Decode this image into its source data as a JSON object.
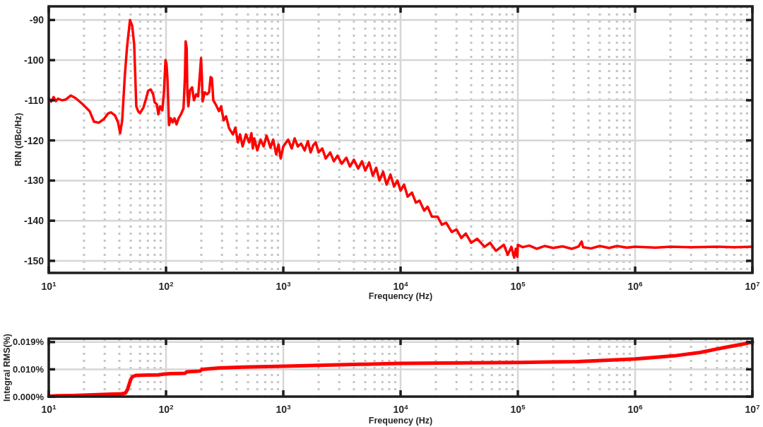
{
  "chart_data": [
    {
      "type": "line",
      "xlabel": "Frequency (Hz)",
      "ylabel": "RIN (dBc/Hz)",
      "log": "x",
      "grid": true,
      "color": "#ff0000",
      "xlim": [
        10,
        10000000
      ],
      "xticks": [
        {
          "value": 10,
          "label": "10$^{1}$"
        },
        {
          "value": 100,
          "label": "10$^{2}$"
        },
        {
          "value": 1000,
          "label": "10$^{3}$"
        },
        {
          "value": 10000,
          "label": "10$^{4}$"
        },
        {
          "value": 100000,
          "label": "10$^{5}$"
        },
        {
          "value": 1000000,
          "label": "10$^{6}$"
        },
        {
          "value": 10000000,
          "label": "10$^{7}$"
        }
      ],
      "ylim": [
        -153,
        -86.6
      ],
      "yticks": [
        -150,
        -140,
        -130,
        -120,
        -110,
        -100,
        -90
      ],
      "x": [
        10,
        10.5,
        11,
        11.5,
        12,
        13,
        14,
        15.4,
        17,
        19.5,
        22.3,
        24.3,
        26.7,
        29.5,
        32,
        33.9,
        36.8,
        39,
        40.6,
        42.3,
        44.5,
        46.5,
        49.3,
        51.5,
        53.5,
        55.8,
        58,
        60,
        64.2,
        67,
        70.5,
        74,
        77.7,
        80,
        83.5,
        86,
        89,
        93,
        96,
        99,
        101,
        103,
        106,
        110,
        114,
        118,
        123,
        128,
        134,
        141,
        145,
        147,
        150,
        152,
        155,
        160,
        167,
        173,
        181,
        188,
        195,
        199,
        202,
        205,
        214,
        224,
        233,
        240,
        246,
        253,
        265,
        283,
        295,
        310,
        325,
        345,
        372,
        390,
        410,
        428,
        450,
        480,
        513,
        535,
        550,
        566,
        600,
        640,
        680,
        720,
        778,
        820,
        870,
        910,
        950,
        1000,
        1100,
        1180,
        1250,
        1330,
        1420,
        1520,
        1620,
        1710,
        1800,
        1890,
        2000,
        2150,
        2300,
        2510,
        2700,
        2900,
        3150,
        3450,
        3700,
        4000,
        4350,
        4690,
        5000,
        5400,
        5800,
        6200,
        6600,
        7100,
        7600,
        8200,
        8800,
        9400,
        10000,
        10700,
        11500,
        12500,
        13500,
        14500,
        15900,
        17000,
        18500,
        20700,
        22500,
        24500,
        27300,
        30000,
        33000,
        36000,
        40000,
        45000,
        52000,
        58000,
        65000,
        76000,
        82000,
        88000,
        93000,
        96000,
        99000,
        100000,
        110000,
        125000,
        145000,
        170000,
        200000,
        240000,
        290000,
        330000,
        350000,
        360000,
        420000,
        500000,
        600000,
        700000,
        850000,
        1000000,
        1500000,
        2000000,
        3000000,
        5000000,
        7000000,
        10000000
      ],
      "values": [
        -109.5,
        -110.3,
        -109.2,
        -110.2,
        -109.6,
        -110,
        -109.8,
        -108.8,
        -109.5,
        -111,
        -112.7,
        -115.3,
        -115.6,
        -114.7,
        -113.3,
        -113,
        -113.8,
        -115.5,
        -118.2,
        -115,
        -104,
        -96.8,
        -90,
        -91.5,
        -96,
        -111.5,
        -112.8,
        -113.2,
        -111.8,
        -110,
        -107.6,
        -107.3,
        -108.5,
        -110.5,
        -111,
        -113.5,
        -111.5,
        -112.5,
        -108,
        -100,
        -101,
        -105,
        -116.2,
        -114.5,
        -115.5,
        -114.5,
        -116,
        -114.5,
        -113.5,
        -112,
        -104,
        -95.3,
        -97,
        -108,
        -111.5,
        -107.5,
        -106.8,
        -110,
        -108.5,
        -109,
        -103,
        -99.5,
        -104,
        -110.3,
        -108,
        -108.5,
        -108,
        -104.2,
        -104.5,
        -110,
        -111,
        -112.7,
        -111.5,
        -115,
        -114,
        -117,
        -118.5,
        -116.8,
        -120.5,
        -118.5,
        -121.5,
        -118.5,
        -120.5,
        -118.2,
        -122,
        -119.5,
        -122.5,
        -119.8,
        -121.5,
        -118.8,
        -121.8,
        -119.8,
        -123.5,
        -121,
        -124.5,
        -121.5,
        -119.8,
        -122,
        -119.5,
        -121.5,
        -120.8,
        -122.5,
        -120.2,
        -123,
        -121.2,
        -120.5,
        -123,
        -122,
        -124.5,
        -123,
        -125.2,
        -123.8,
        -125.8,
        -124.3,
        -126.5,
        -124.8,
        -127,
        -125.2,
        -127.5,
        -125.5,
        -128.8,
        -126.8,
        -130,
        -127.8,
        -131,
        -128.5,
        -131.5,
        -130,
        -132.5,
        -131,
        -134,
        -133,
        -135.5,
        -135,
        -137.5,
        -136.5,
        -139,
        -139,
        -141,
        -140.5,
        -142.8,
        -142.2,
        -144.3,
        -143.2,
        -145.5,
        -144.5,
        -146.5,
        -145.5,
        -147.5,
        -146,
        -148.5,
        -146.5,
        -149.2,
        -147,
        -149,
        -146,
        -146.6,
        -146.2,
        -147,
        -146.3,
        -146.8,
        -146.4,
        -147,
        -146.4,
        -145.2,
        -146.6,
        -146.9,
        -146.3,
        -146.8,
        -146.3,
        -146.7,
        -146.5,
        -146.7,
        -146.5,
        -146.6,
        -146.5,
        -146.6,
        -146.5
      ]
    },
    {
      "type": "line",
      "xlabel": "Frequency (Hz)",
      "ylabel": "Integral RMS(%)",
      "log": "x",
      "grid": true,
      "color": "#ff0000",
      "xlim": [
        10,
        10000000
      ],
      "xticks": [
        {
          "value": 10,
          "label": "10$^{1}$"
        },
        {
          "value": 100,
          "label": "10$^{2}$"
        },
        {
          "value": 1000,
          "label": "10$^{3}$"
        },
        {
          "value": 10000,
          "label": "10$^{4}$"
        },
        {
          "value": 100000,
          "label": "10$^{5}$"
        },
        {
          "value": 1000000,
          "label": "10$^{6}$"
        },
        {
          "value": 10000000,
          "label": "10$^{7}$"
        }
      ],
      "ylim": [
        0,
        0.0202
      ],
      "yticks": [
        {
          "value": 0,
          "label": "0.000%"
        },
        {
          "value": 0.0095,
          "label": "0.010%"
        },
        {
          "value": 0.019,
          "label": "0.019%"
        }
      ],
      "x": [
        10,
        12,
        16,
        26,
        41.7,
        45,
        47,
        48.5,
        50,
        52,
        55.8,
        70,
        86,
        95,
        100,
        109,
        145,
        150,
        177,
        195,
        203,
        283,
        456,
        1020,
        4960,
        10000,
        100000,
        320000,
        1000000,
        2150000,
        3600000,
        5600000,
        8300000,
        10000000
      ],
      "values": [
        0.0001,
        0.0003,
        0.0004,
        0.0007,
        0.001,
        0.0012,
        0.0025,
        0.0043,
        0.006,
        0.007,
        0.0074,
        0.0075,
        0.0076,
        0.0078,
        0.0079,
        0.008,
        0.0081,
        0.0086,
        0.0088,
        0.0089,
        0.0095,
        0.01,
        0.0103,
        0.0106,
        0.0113,
        0.0116,
        0.0119,
        0.0122,
        0.0131,
        0.0142,
        0.0154,
        0.017,
        0.0183,
        0.019
      ]
    }
  ]
}
